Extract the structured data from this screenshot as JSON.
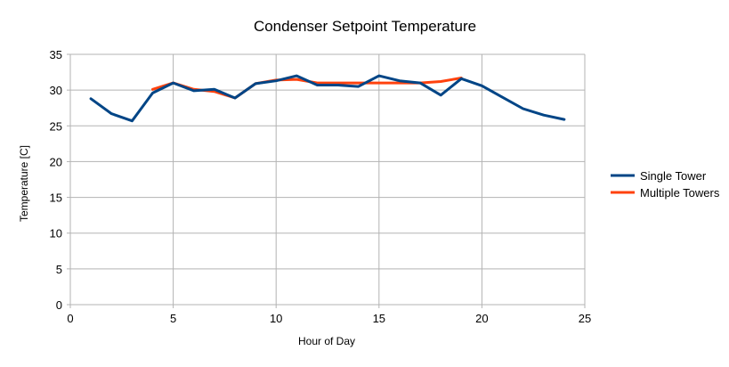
{
  "chart_data": {
    "type": "line",
    "title": "Condenser Setpoint Temperature",
    "xlabel": "Hour of Day",
    "ylabel": "Temperature [C]",
    "xlim": [
      0,
      25
    ],
    "ylim": [
      0,
      35
    ],
    "xticks": [
      0,
      5,
      10,
      15,
      20,
      25
    ],
    "yticks": [
      0,
      5,
      10,
      15,
      20,
      25,
      30,
      35
    ],
    "grid": true,
    "legend_position": "right",
    "series": [
      {
        "name": "Multiple Towers",
        "color": "#ff420e",
        "x": [
          4,
          5,
          6,
          7,
          8,
          9,
          10,
          11,
          12,
          13,
          14,
          15,
          16,
          17,
          18,
          19
        ],
        "y": [
          30.1,
          31.0,
          30.1,
          29.8,
          28.9,
          30.9,
          31.4,
          31.5,
          31.0,
          31.0,
          31.0,
          31.0,
          31.0,
          31.0,
          31.2,
          31.7
        ]
      },
      {
        "name": "Single Tower",
        "color": "#004586",
        "x": [
          1,
          2,
          3,
          4,
          5,
          6,
          7,
          8,
          9,
          10,
          11,
          12,
          13,
          14,
          15,
          16,
          17,
          18,
          19,
          20,
          21,
          22,
          23,
          24
        ],
        "y": [
          28.8,
          26.7,
          25.7,
          29.6,
          31.0,
          29.9,
          30.1,
          28.9,
          30.9,
          31.3,
          32.0,
          30.7,
          30.7,
          30.5,
          32.0,
          31.3,
          31.0,
          29.3,
          31.6,
          30.6,
          29.0,
          27.4,
          26.5,
          25.9
        ]
      }
    ],
    "legend_order": [
      "Single Tower",
      "Multiple Towers"
    ]
  }
}
